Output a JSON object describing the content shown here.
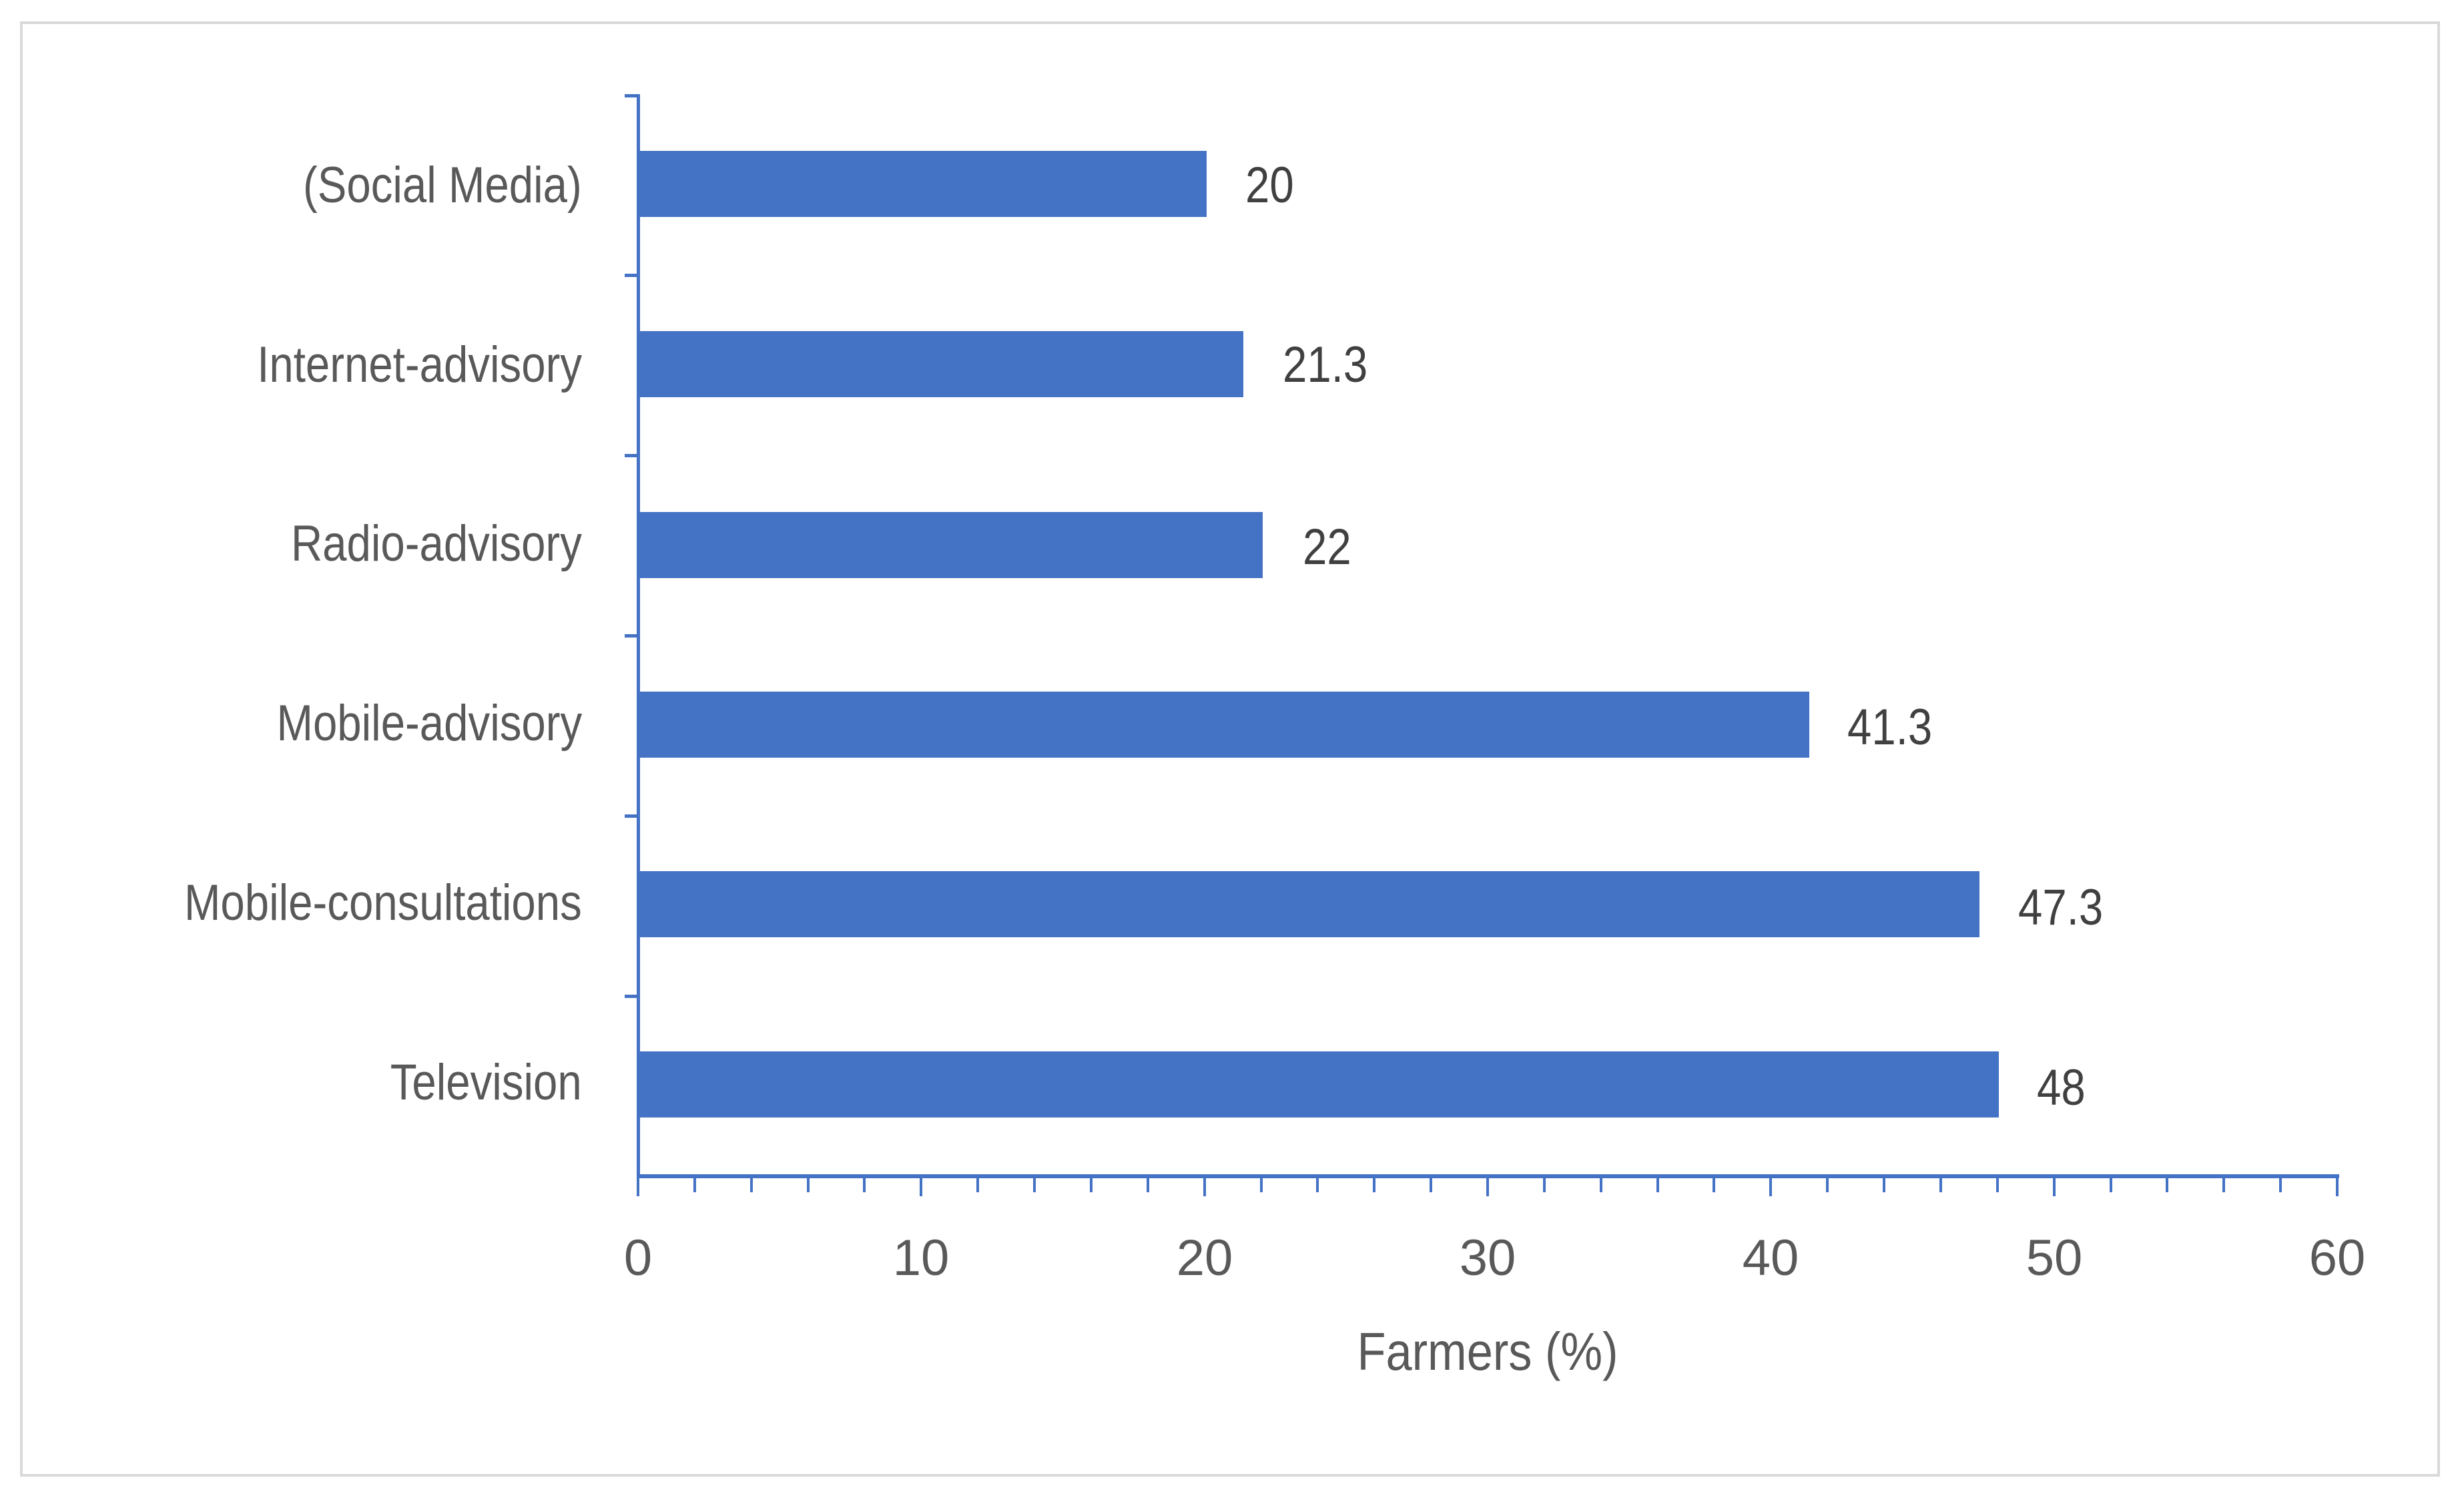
{
  "chart_data": {
    "type": "bar",
    "orientation": "horizontal",
    "title": "",
    "categories": [
      "(Social Media)",
      "Internet-advisory",
      "Radio-advisory",
      "Mobile-advisory",
      "Mobile-consultations",
      "Television"
    ],
    "values": [
      20,
      21.3,
      22,
      41.3,
      47.3,
      48
    ],
    "data_labels": [
      "20",
      "21.3",
      "22",
      "41.3",
      "47.3",
      "48"
    ],
    "xlabel": "Farmers (%)",
    "ylabel": "",
    "xlim": [
      0,
      60
    ],
    "x_ticks": [
      "0",
      "10",
      "20",
      "30",
      "40",
      "50",
      "60"
    ],
    "x_minor_tick_step": 2,
    "grid": false,
    "legend": "none",
    "bar_color": "#4472c4"
  }
}
